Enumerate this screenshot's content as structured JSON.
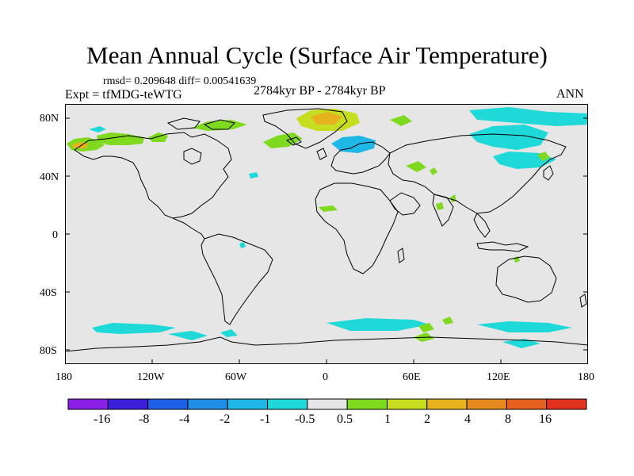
{
  "title": "Mean Annual Cycle (Surface Air Temperature)",
  "stats": "rmsd= 0.209648  diff= 0.00541639",
  "experiment": "Expt = tfMDG-teWTG",
  "period": "2784kyr BP - 2784kyr BP",
  "season": "ANN",
  "axes": {
    "lat_labels": [
      "80N",
      "40N",
      "0",
      "40S",
      "80S"
    ],
    "lon_labels": [
      "180",
      "120W",
      "60W",
      "0",
      "60E",
      "120E",
      "180"
    ]
  },
  "colors": {
    "ocean_background": "#e6e6e6",
    "coastline": "#000000"
  },
  "colorbar": {
    "labels": [
      "-16",
      "-8",
      "-4",
      "-2",
      "-1",
      "-0.5",
      "0.5",
      "1",
      "2",
      "4",
      "8",
      "16"
    ],
    "colors": [
      "#8a1fe6",
      "#3c1fd9",
      "#1f5fe6",
      "#1f8ee6",
      "#1fb7e6",
      "#1fd9d9",
      "#e6e6e6",
      "#7fd91f",
      "#c7dd1f",
      "#e6b31f",
      "#e68a1f",
      "#e6601f",
      "#e0321f"
    ]
  },
  "anomaly_palette": {
    "neg_small": "#1fd9d9",
    "neg_medium": "#1fb7e6",
    "pos_small": "#7fd91f",
    "pos_medium": "#c7dd1f",
    "pos_large": "#e6b31f"
  }
}
